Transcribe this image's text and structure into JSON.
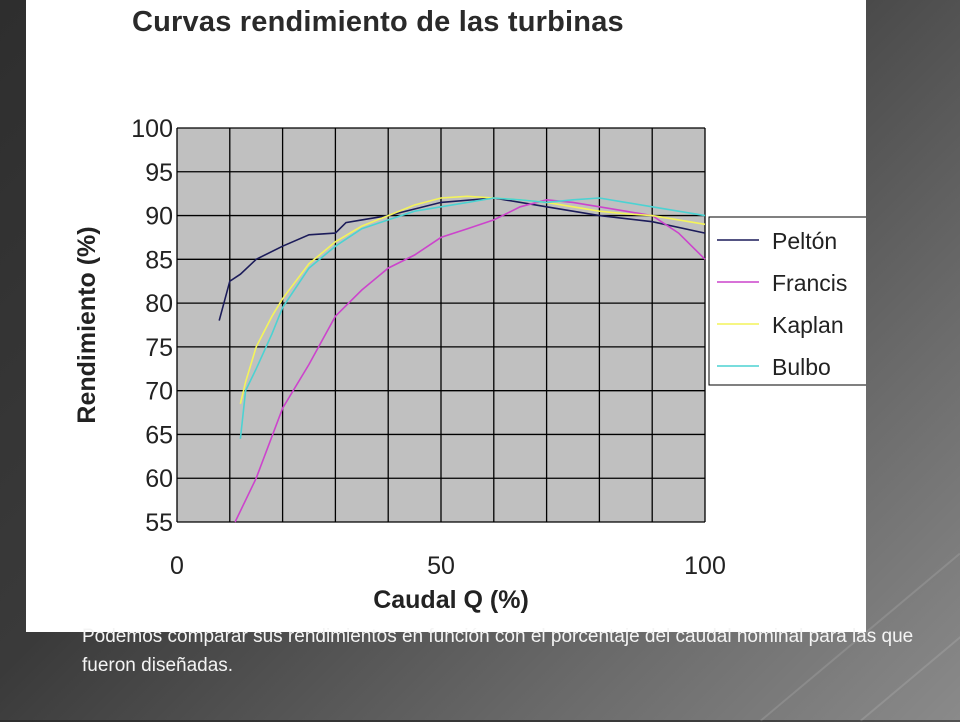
{
  "slide": {
    "caption": "Podemos comparar sus rendimientos en función con el porcentaje del caudal nominal para las que fueron diseñadas."
  },
  "chart_data": {
    "type": "line",
    "title": "Curvas rendimiento de las turbinas",
    "xlabel": "Caudal Q (%)",
    "ylabel": "Rendimiento (%)",
    "xlim": [
      0,
      100
    ],
    "ylim": [
      55,
      100
    ],
    "xticks": [
      "0",
      "50",
      "100"
    ],
    "yticks": [
      "100",
      "95",
      "90",
      "85",
      "80",
      "75",
      "70",
      "65",
      "60",
      "55"
    ],
    "grid": true,
    "plot_background": "#c0c0c0",
    "legend_position": "right",
    "series": [
      {
        "name": "Peltón",
        "color": "#1c1c5a",
        "x": [
          8,
          10,
          12,
          15,
          20,
          25,
          30,
          32,
          35,
          40,
          50,
          60,
          70,
          80,
          90,
          100
        ],
        "y": [
          78,
          82.5,
          83.3,
          85,
          86.5,
          87.8,
          88,
          89.2,
          89.5,
          90,
          91.5,
          92,
          91,
          90,
          89.3,
          88
        ]
      },
      {
        "name": "Francis",
        "color": "#cc44cc",
        "x": [
          11,
          15,
          20,
          25,
          30,
          35,
          40,
          45,
          50,
          55,
          60,
          65,
          70,
          75,
          80,
          85,
          90,
          95,
          100
        ],
        "y": [
          55,
          60,
          68,
          73,
          78.5,
          81.5,
          84,
          85.5,
          87.5,
          88.5,
          89.5,
          91,
          91.8,
          91.5,
          91,
          90.5,
          90,
          88,
          85
        ]
      },
      {
        "name": "Kaplan",
        "color": "#f4f45a",
        "x": [
          12,
          13,
          15,
          18,
          20,
          25,
          30,
          35,
          40,
          45,
          50,
          55,
          60,
          65,
          70,
          75,
          80,
          85,
          90,
          95,
          100
        ],
        "y": [
          68.5,
          71,
          75,
          78.5,
          80.5,
          84.5,
          87,
          88.8,
          90,
          91.2,
          92,
          92.2,
          92,
          91.8,
          91.5,
          91,
          90.5,
          90.2,
          90,
          89.5,
          89
        ]
      },
      {
        "name": "Bulbo",
        "color": "#4cd2d2",
        "x": [
          12,
          13,
          15,
          18,
          20,
          25,
          30,
          35,
          40,
          45,
          50,
          55,
          60,
          65,
          70,
          75,
          80,
          85,
          90,
          95,
          100
        ],
        "y": [
          64.5,
          70,
          72.5,
          76.5,
          79.5,
          84,
          86.5,
          88.5,
          89.5,
          90.5,
          91,
          91.5,
          92,
          91.8,
          91.5,
          91.8,
          92,
          91.5,
          91,
          90.5,
          90
        ]
      }
    ]
  }
}
